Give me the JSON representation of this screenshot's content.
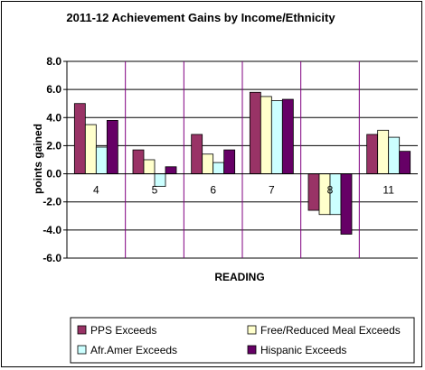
{
  "chart_data": {
    "type": "bar",
    "title": "2011-12 Achievement Gains by Income/Ethnicity",
    "xlabel": "READING",
    "ylabel": "points gained",
    "ylim": [
      -6.0,
      8.0
    ],
    "yticks": [
      "8.0",
      "6.0",
      "4.0",
      "2.0",
      "0.0",
      "-2.0",
      "-4.0",
      "-6.0"
    ],
    "ytick_values": [
      8,
      6,
      4,
      2,
      0,
      -2,
      -4,
      -6
    ],
    "categories": [
      "4",
      "5",
      "6",
      "7",
      "8",
      "11"
    ],
    "series": [
      {
        "name": "PPS Exceeds",
        "color": "#993366",
        "values": [
          5.0,
          1.7,
          2.8,
          5.8,
          -2.6,
          2.8
        ]
      },
      {
        "name": "Free/Reduced Meal Exceeds",
        "color": "#FFFFCC",
        "values": [
          3.5,
          1.0,
          1.4,
          5.5,
          -2.9,
          3.1
        ]
      },
      {
        "name": "Afr.Amer Exceeds",
        "color": "#CCFFFF",
        "values": [
          1.9,
          -0.9,
          0.8,
          5.2,
          -2.9,
          2.6
        ]
      },
      {
        "name": "Hispanic Exceeds",
        "color": "#660066",
        "values": [
          3.8,
          0.5,
          1.7,
          5.3,
          -4.3,
          1.6
        ]
      }
    ],
    "grid": true,
    "legend_position": "bottom"
  }
}
